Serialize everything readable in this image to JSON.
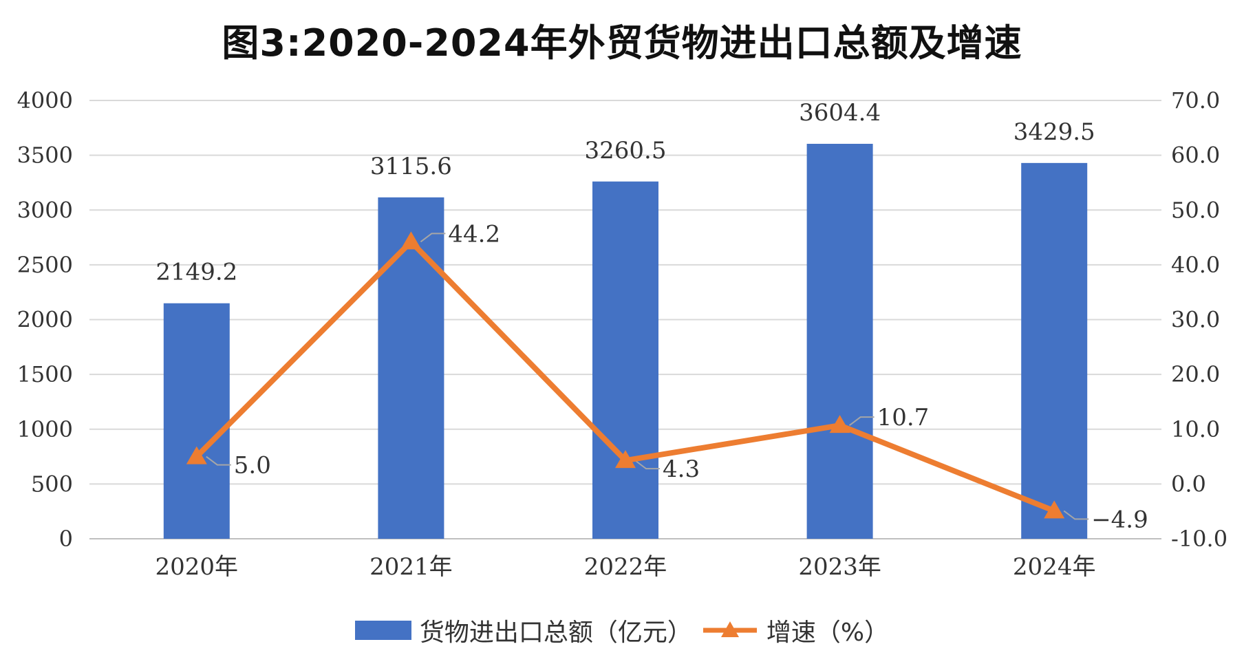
{
  "chart_data": {
    "type": "bar",
    "title": "图3:2020-2024年外贸货物进出口总额及增速",
    "categories": [
      "2020年",
      "2021年",
      "2022年",
      "2023年",
      "2024年"
    ],
    "series": [
      {
        "name": "货物进出口总额（亿元）",
        "type": "bar",
        "axis": "left",
        "color": "#4472C4",
        "values": [
          2149.2,
          3115.6,
          3260.5,
          3604.4,
          3429.5
        ],
        "labels": [
          "2149.2",
          "3115.6",
          "3260.5",
          "3604.4",
          "3429.5"
        ]
      },
      {
        "name": "增速（%）",
        "type": "line",
        "marker": "triangle",
        "axis": "right",
        "color": "#ED7D31",
        "values": [
          5.0,
          44.2,
          4.3,
          10.7,
          -4.9
        ],
        "labels": [
          "5.0",
          "44.2",
          "4.3",
          "10.7",
          "−4.9"
        ]
      }
    ],
    "left_axis": {
      "ylim": [
        0,
        4000
      ],
      "ticks": [
        "0",
        "500",
        "1000",
        "1500",
        "2000",
        "2500",
        "3000",
        "3500",
        "4000"
      ]
    },
    "right_axis": {
      "ylim": [
        -10,
        70
      ],
      "ticks": [
        "-10.0",
        "0.0",
        "10.0",
        "20.0",
        "30.0",
        "40.0",
        "50.0",
        "60.0",
        "70.0"
      ]
    },
    "grid": true,
    "legend": "bottom"
  }
}
